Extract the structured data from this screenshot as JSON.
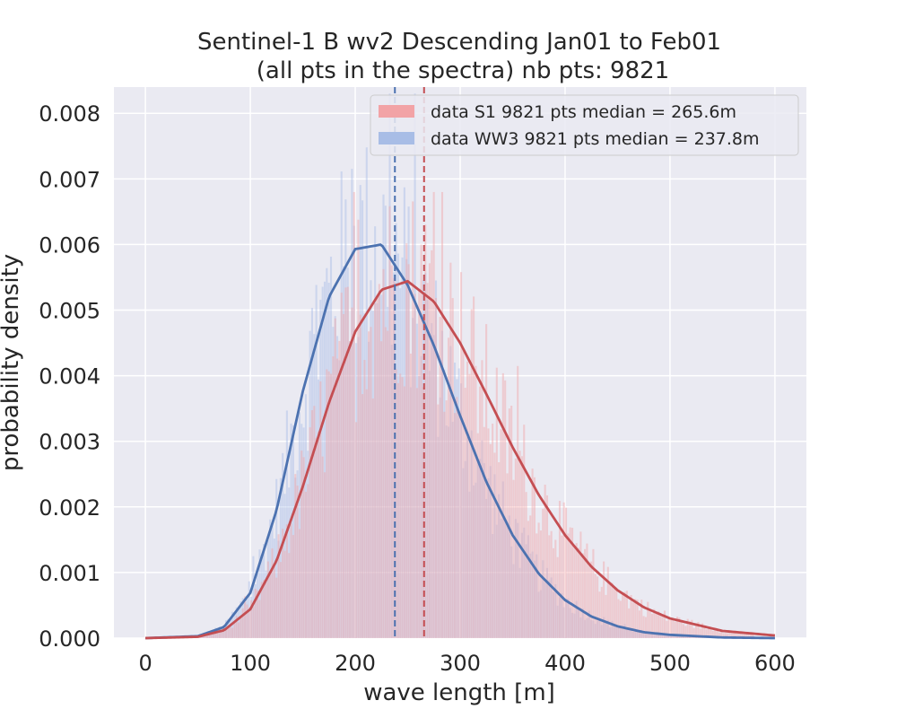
{
  "chart_data": {
    "type": "histogram",
    "title_line1": "Sentinel-1 B wv2 Descending Jan01 to Feb01",
    "title_line2": "(all pts in the spectra) nb pts: 9821",
    "xlabel": "wave length [m]",
    "ylabel": "probability density",
    "xlim": [
      -30,
      630
    ],
    "ylim": [
      0,
      0.0084
    ],
    "x_ticks": [
      0,
      100,
      200,
      300,
      400,
      500,
      600
    ],
    "x_tick_labels": [
      "0",
      "100",
      "200",
      "300",
      "400",
      "500",
      "600"
    ],
    "y_ticks": [
      0,
      0.001,
      0.002,
      0.003,
      0.004,
      0.005,
      0.006,
      0.007,
      0.008
    ],
    "y_tick_labels": [
      "0.000",
      "0.001",
      "0.002",
      "0.003",
      "0.004",
      "0.005",
      "0.006",
      "0.007",
      "0.008"
    ],
    "grid": true,
    "legend_position": "top-right",
    "colors": {
      "background": "#eaeaf2",
      "grid": "#ffffff",
      "s1": "#c44e52",
      "ww3": "#4c72b0",
      "s1_hist": "#f2a3a6",
      "ww3_hist": "#a8bde6"
    },
    "series": [
      {
        "name": "data S1 9821 pts median = 265.6m",
        "median": 265.6,
        "fit_peak_x": 257,
        "fit_peak_density": 0.00545,
        "histogram_bin_edges": [
          40,
          580
        ],
        "histogram_bin_width": 2,
        "histogram_peak_density": 0.0068
      },
      {
        "name": "data WW3 9821 pts median = 237.8m",
        "median": 237.8,
        "fit_peak_x": 224,
        "fit_peak_density": 0.006,
        "histogram_bin_edges": [
          40,
          580
        ],
        "histogram_bin_width": 2,
        "histogram_peak_density": 0.0083
      }
    ],
    "fit_curves": {
      "x": [
        0,
        50,
        75,
        100,
        125,
        150,
        175,
        200,
        225,
        250,
        275,
        300,
        325,
        350,
        375,
        400,
        425,
        450,
        475,
        500,
        550,
        600
      ],
      "s1": [
        0,
        2e-05,
        0.00012,
        0.00044,
        0.00118,
        0.00231,
        0.00359,
        0.00467,
        0.00531,
        0.00544,
        0.00513,
        0.0045,
        0.00372,
        0.00291,
        0.00218,
        0.00157,
        0.00109,
        0.00073,
        0.00047,
        0.0003,
        0.00011,
        4e-05
      ],
      "ww3": [
        0,
        3e-05,
        0.00017,
        0.00069,
        0.00195,
        0.00376,
        0.0052,
        0.00593,
        0.006,
        0.00538,
        0.00446,
        0.00339,
        0.00238,
        0.00157,
        0.00098,
        0.00058,
        0.00033,
        0.00018,
        9e-05,
        5e-05,
        1e-05,
        0
      ]
    }
  }
}
